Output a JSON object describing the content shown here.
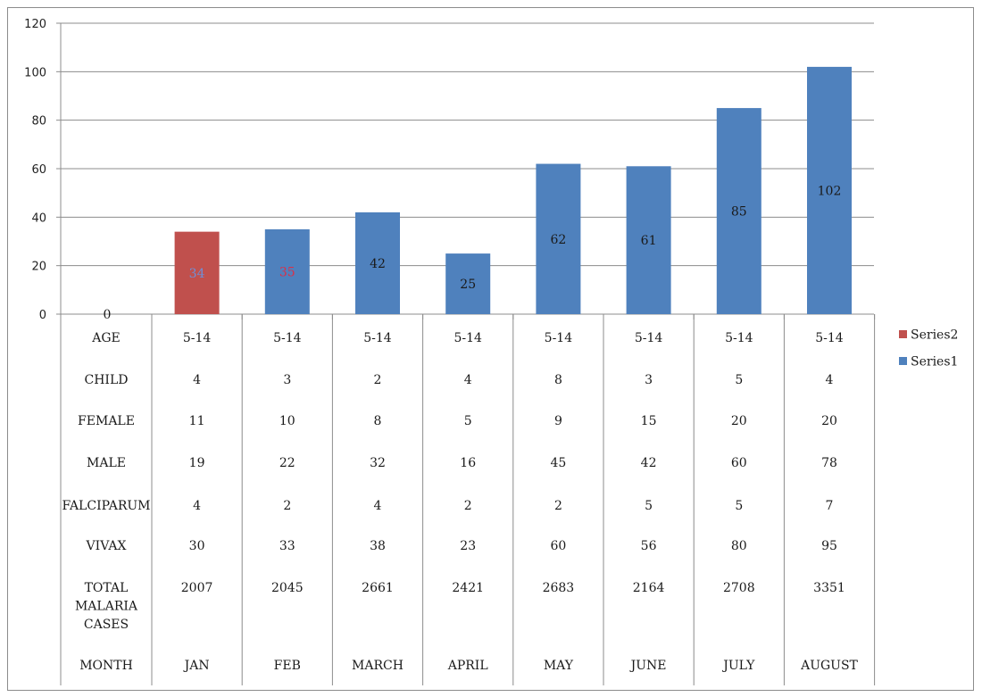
{
  "chart_data": {
    "type": "bar",
    "title": "",
    "xlabel": "",
    "ylabel": "",
    "ylim": [
      0,
      120
    ],
    "yticks": [
      "0",
      "20",
      "40",
      "60",
      "80",
      "100",
      "120"
    ],
    "grid": true,
    "legend_position": "right",
    "categories": [
      "JAN",
      "FEB",
      "MARCH",
      "APRIL",
      "MAY",
      "JUNE",
      "JULY",
      "AUGUST"
    ],
    "series": [
      {
        "name": "Series2",
        "color": "#c0504d",
        "values": [
          34,
          null,
          null,
          null,
          null,
          null,
          null,
          null
        ]
      },
      {
        "name": "Series1",
        "color": "#4f81bd",
        "values": [
          0,
          35,
          42,
          25,
          62,
          61,
          85,
          102
        ]
      }
    ],
    "data_labels": [
      {
        "category": "JAN",
        "text": "0",
        "color": "#1a1a1a"
      },
      {
        "category": "JAN",
        "text": "34",
        "color": "#6f8fd6"
      },
      {
        "category": "FEB",
        "text": "35",
        "color": "#d9304a"
      },
      {
        "category": "MARCH",
        "text": "42",
        "color": "#1a1a1a"
      },
      {
        "category": "APRIL",
        "text": "25",
        "color": "#1a1a1a"
      },
      {
        "category": "MAY",
        "text": "62",
        "color": "#1a1a1a"
      },
      {
        "category": "JUNE",
        "text": "61",
        "color": "#1a1a1a"
      },
      {
        "category": "JULY",
        "text": "85",
        "color": "#1a1a1a"
      },
      {
        "category": "AUGUST",
        "text": "102",
        "color": "#1a1a1a"
      }
    ],
    "table": {
      "rows": [
        {
          "label": "AGE",
          "values": [
            "5-14",
            "5-14",
            "5-14",
            "5-14",
            "5-14",
            "5-14",
            "5-14",
            "5-14"
          ]
        },
        {
          "label": "CHILD",
          "values": [
            "4",
            "3",
            "2",
            "4",
            "8",
            "3",
            "5",
            "4"
          ]
        },
        {
          "label": "FEMALE",
          "values": [
            "11",
            "10",
            "8",
            "5",
            "9",
            "15",
            "20",
            "20"
          ]
        },
        {
          "label": "MALE",
          "values": [
            "19",
            "22",
            "32",
            "16",
            "45",
            "42",
            "60",
            "78"
          ]
        },
        {
          "label": "FALCIPARUM",
          "values": [
            "4",
            "2",
            "4",
            "2",
            "2",
            "5",
            "5",
            "7"
          ]
        },
        {
          "label": "VIVAX",
          "values": [
            "30",
            "33",
            "38",
            "23",
            "60",
            "56",
            "80",
            "95"
          ]
        },
        {
          "label": "TOTAL MALARIA CASES",
          "values": [
            "2007",
            "2045",
            "2661",
            "2421",
            "2683",
            "2164",
            "2708",
            "3351"
          ]
        },
        {
          "label": "MONTH",
          "values": [
            "JAN",
            "FEB",
            "MARCH",
            "APRIL",
            "MAY",
            "JUNE",
            "JULY",
            "AUGUST"
          ]
        }
      ]
    },
    "legend": [
      {
        "name": "Series2",
        "color": "#c0504d"
      },
      {
        "name": "Series1",
        "color": "#4f81bd"
      }
    ]
  }
}
